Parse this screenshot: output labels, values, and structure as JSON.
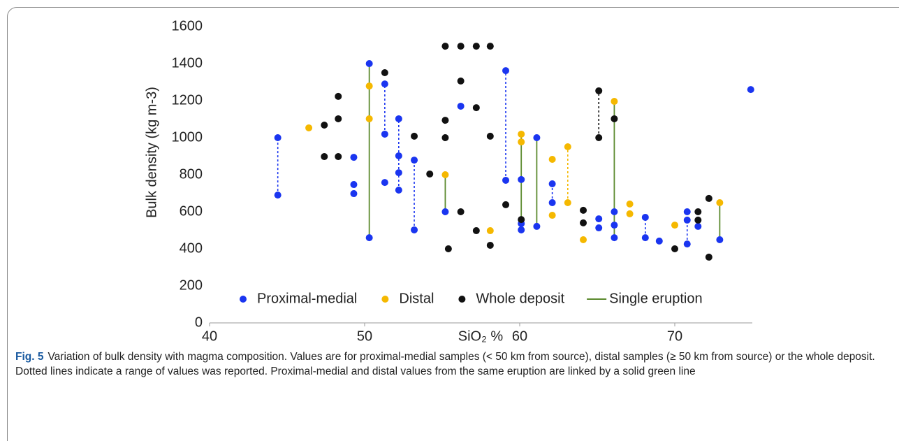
{
  "chart_data": {
    "type": "scatter",
    "x_label": "SiO₂ %",
    "y_label": "Bulk density (kg m-3)",
    "xlim": [
      40,
      75
    ],
    "xticks": [
      40,
      50,
      60,
      70
    ],
    "ylim": [
      0,
      1600
    ],
    "yticks": [
      0,
      200,
      400,
      600,
      800,
      1000,
      1200,
      1400,
      1600
    ],
    "grid": false,
    "legend": "bottom",
    "series": [
      {
        "kind": "line",
        "color": "#1a35f0",
        "dash": true,
        "x": [
          44.4,
          44.4,
          null,
          51.3,
          51.3,
          null,
          52.2,
          52.2,
          null,
          53.2,
          53.2,
          null,
          59.1,
          59.1,
          null,
          62.1,
          62.1,
          null,
          68.1,
          68.1,
          null,
          70.8,
          70.8
        ],
        "values": [
          690,
          1000,
          null,
          1019,
          1290,
          null,
          717,
          1102,
          null,
          502,
          879,
          null,
          770,
          1362,
          null,
          649,
          751,
          null,
          460,
          570,
          null,
          426,
          600
        ]
      },
      {
        "kind": "line",
        "color": "#f5b800",
        "dash": true,
        "x": [
          63.1,
          63.1
        ],
        "values": [
          649,
          951
        ]
      },
      {
        "kind": "line",
        "color": "#111111",
        "dash": true,
        "x": [
          65.1,
          65.1
        ],
        "values": [
          1000,
          1253
        ]
      },
      {
        "kind": "scatter",
        "name": "Proximal-medial",
        "color": "#1a35f0",
        "x": [
          44.4,
          44.4,
          49.3,
          49.3,
          49.3,
          50.3,
          50.3,
          51.3,
          51.3,
          51.3,
          52.2,
          52.2,
          52.2,
          52.2,
          53.2,
          53.2,
          55.2,
          56.2,
          59.1,
          59.1,
          60.1,
          60.1,
          60.1,
          61.1,
          61.1,
          62.1,
          62.1,
          65.1,
          65.1,
          66.1,
          66.1,
          66.1,
          68.1,
          68.1,
          69.0,
          70.8,
          70.8,
          70.8,
          71.5,
          72.9,
          74.9
        ],
        "values": [
          690,
          1000,
          894,
          747,
          698,
          1400,
          460,
          1290,
          1019,
          758,
          1102,
          902,
          811,
          717,
          879,
          502,
          600,
          1170,
          1362,
          770,
          774,
          536,
          502,
          1000,
          521,
          751,
          649,
          562,
          513,
          600,
          528,
          460,
          570,
          460,
          442,
          600,
          555,
          426,
          521,
          449,
          1260
        ]
      },
      {
        "kind": "scatter",
        "name": "Distal",
        "color": "#f5b800",
        "x": [
          46.4,
          50.3,
          50.3,
          55.2,
          58.1,
          60.1,
          60.1,
          62.1,
          62.1,
          63.1,
          63.1,
          64.1,
          66.1,
          67.1,
          67.1,
          70.0,
          72.9
        ],
        "values": [
          1053,
          1279,
          1102,
          800,
          498,
          1019,
          977,
          883,
          581,
          951,
          649,
          449,
          1196,
          642,
          589,
          528,
          649
        ]
      },
      {
        "kind": "scatter",
        "name": "Whole deposit",
        "color": "#111111",
        "x": [
          47.4,
          47.4,
          48.3,
          48.3,
          48.3,
          51.3,
          53.2,
          54.2,
          55.2,
          55.2,
          55.2,
          55.4,
          56.2,
          56.2,
          56.2,
          57.2,
          57.2,
          57.2,
          58.1,
          58.1,
          58.1,
          59.1,
          60.1,
          64.1,
          64.1,
          65.1,
          65.1,
          66.1,
          70.0,
          71.5,
          71.5,
          72.2,
          72.2
        ],
        "values": [
          1068,
          898,
          1223,
          1102,
          898,
          1351,
          1008,
          804,
          1494,
          1094,
          1000,
          400,
          1494,
          1306,
          600,
          1494,
          1162,
          498,
          1494,
          1008,
          419,
          638,
          558,
          608,
          540,
          1253,
          1000,
          1102,
          400,
          600,
          555,
          672,
          355
        ]
      },
      {
        "kind": "line",
        "name": "Single eruption",
        "color": "#5b8a2e",
        "dash": false,
        "x": [
          50.3,
          50.3,
          null,
          55.2,
          55.2,
          null,
          60.1,
          60.1,
          null,
          61.1,
          61.1,
          null,
          66.1,
          66.1,
          null,
          72.9,
          72.9
        ],
        "values": [
          460,
          1400,
          null,
          600,
          800,
          null,
          536,
          1019,
          null,
          521,
          1000,
          null,
          460,
          1196,
          null,
          449,
          649
        ]
      }
    ]
  },
  "caption": {
    "label": "Fig. 5",
    "text": "Variation of bulk density with magma composition. Values are for proximal-medial samples (< 50 km from source), distal samples (≥ 50 km from source) or the whole deposit. Dotted lines indicate a range of values was reported. Proximal-medial and distal values from the same eruption are linked by a solid green line"
  }
}
